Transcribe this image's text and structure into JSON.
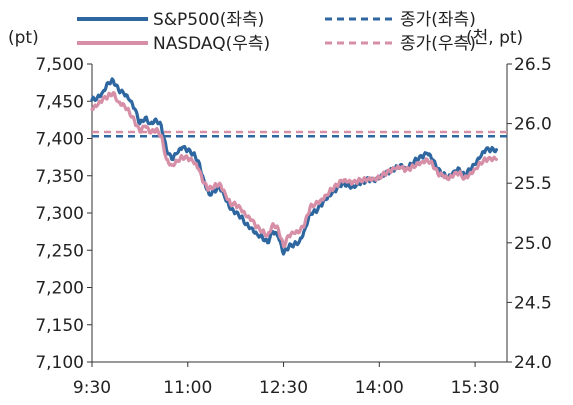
{
  "chart_data": {
    "type": "line",
    "units": {
      "left": "(pt)",
      "right": "(천, pt)"
    },
    "legend": [
      {
        "label": "S&P500(좌측)",
        "style": "solid",
        "color": "#2e66a0"
      },
      {
        "label": "NASDAQ(우측)",
        "style": "solid",
        "color": "#d68fa6"
      },
      {
        "label": "종가(좌측)",
        "style": "dashed",
        "color": "#2e66a0"
      },
      {
        "label": "종가(우측)",
        "style": "dashed",
        "color": "#d68fa6"
      }
    ],
    "x_ticks": [
      "9:30",
      "11:00",
      "12:30",
      "14:00",
      "15:30"
    ],
    "x_range_minutes": [
      570,
      960
    ],
    "y_left": {
      "min": 7100,
      "max": 7500,
      "ticks": [
        "7,500",
        "7,450",
        "7,400",
        "7,350",
        "7,300",
        "7,250",
        "7,200",
        "7,150",
        "7,100"
      ]
    },
    "y_right": {
      "min": 24.0,
      "max": 26.5,
      "ticks": [
        "26.5",
        "26.0",
        "25.5",
        "25.0",
        "24.5",
        "24.0"
      ]
    },
    "reference_lines": {
      "sp500_close_left": 7403,
      "nasdaq_close_right": 25.93
    },
    "series": [
      {
        "name": "S&P500(좌측)",
        "axis": "left",
        "color": "#2e66a0",
        "points": [
          [
            "9:30",
            7452
          ],
          [
            "9:35",
            7455
          ],
          [
            "9:40",
            7462
          ],
          [
            "9:45",
            7475
          ],
          [
            "9:50",
            7478
          ],
          [
            "9:55",
            7465
          ],
          [
            "10:00",
            7460
          ],
          [
            "10:05",
            7452
          ],
          [
            "10:10",
            7440
          ],
          [
            "10:15",
            7420
          ],
          [
            "10:20",
            7428
          ],
          [
            "10:25",
            7420
          ],
          [
            "10:30",
            7426
          ],
          [
            "10:35",
            7418
          ],
          [
            "10:40",
            7385
          ],
          [
            "10:45",
            7372
          ],
          [
            "10:50",
            7380
          ],
          [
            "10:55",
            7388
          ],
          [
            "11:00",
            7384
          ],
          [
            "11:05",
            7380
          ],
          [
            "11:10",
            7370
          ],
          [
            "11:15",
            7345
          ],
          [
            "11:20",
            7325
          ],
          [
            "11:25",
            7330
          ],
          [
            "11:30",
            7335
          ],
          [
            "11:35",
            7320
          ],
          [
            "11:40",
            7305
          ],
          [
            "11:45",
            7300
          ],
          [
            "11:50",
            7295
          ],
          [
            "11:55",
            7285
          ],
          [
            "12:00",
            7280
          ],
          [
            "12:05",
            7272
          ],
          [
            "12:10",
            7268
          ],
          [
            "12:15",
            7260
          ],
          [
            "12:20",
            7275
          ],
          [
            "12:25",
            7268
          ],
          [
            "12:30",
            7245
          ],
          [
            "12:35",
            7255
          ],
          [
            "12:40",
            7258
          ],
          [
            "12:45",
            7262
          ],
          [
            "12:50",
            7278
          ],
          [
            "12:55",
            7300
          ],
          [
            "13:00",
            7302
          ],
          [
            "13:05",
            7310
          ],
          [
            "13:10",
            7318
          ],
          [
            "13:15",
            7325
          ],
          [
            "13:20",
            7332
          ],
          [
            "13:25",
            7340
          ],
          [
            "13:30",
            7338
          ],
          [
            "13:35",
            7335
          ],
          [
            "13:40",
            7340
          ],
          [
            "13:45",
            7342
          ],
          [
            "13:50",
            7345
          ],
          [
            "13:55",
            7343
          ],
          [
            "14:00",
            7346
          ],
          [
            "14:05",
            7352
          ],
          [
            "14:10",
            7356
          ],
          [
            "14:15",
            7360
          ],
          [
            "14:20",
            7365
          ],
          [
            "14:25",
            7360
          ],
          [
            "14:30",
            7366
          ],
          [
            "14:35",
            7372
          ],
          [
            "14:40",
            7375
          ],
          [
            "14:45",
            7380
          ],
          [
            "14:50",
            7372
          ],
          [
            "14:55",
            7358
          ],
          [
            "15:00",
            7352
          ],
          [
            "15:05",
            7348
          ],
          [
            "15:10",
            7356
          ],
          [
            "15:15",
            7360
          ],
          [
            "15:20",
            7350
          ],
          [
            "15:25",
            7358
          ],
          [
            "15:30",
            7365
          ],
          [
            "15:35",
            7375
          ],
          [
            "15:40",
            7385
          ],
          [
            "15:45",
            7385
          ],
          [
            "15:50",
            7385
          ]
        ]
      },
      {
        "name": "NASDAQ(우측)",
        "axis": "right",
        "color": "#d68fa6",
        "points": [
          [
            "9:30",
            26.12
          ],
          [
            "9:35",
            26.15
          ],
          [
            "9:40",
            26.2
          ],
          [
            "9:45",
            26.23
          ],
          [
            "9:50",
            26.26
          ],
          [
            "9:55",
            26.18
          ],
          [
            "10:00",
            26.16
          ],
          [
            "10:05",
            26.1
          ],
          [
            "10:10",
            26.02
          ],
          [
            "10:15",
            25.93
          ],
          [
            "10:20",
            25.98
          ],
          [
            "10:25",
            25.92
          ],
          [
            "10:30",
            25.95
          ],
          [
            "10:35",
            25.9
          ],
          [
            "10:40",
            25.7
          ],
          [
            "10:45",
            25.65
          ],
          [
            "10:50",
            25.69
          ],
          [
            "10:55",
            25.72
          ],
          [
            "11:00",
            25.71
          ],
          [
            "11:05",
            25.68
          ],
          [
            "11:10",
            25.62
          ],
          [
            "11:15",
            25.5
          ],
          [
            "11:20",
            25.45
          ],
          [
            "11:25",
            25.48
          ],
          [
            "11:30",
            25.5
          ],
          [
            "11:35",
            25.42
          ],
          [
            "11:40",
            25.33
          ],
          [
            "11:45",
            25.32
          ],
          [
            "11:50",
            25.28
          ],
          [
            "11:55",
            25.22
          ],
          [
            "12:00",
            25.19
          ],
          [
            "12:05",
            25.13
          ],
          [
            "12:10",
            25.1
          ],
          [
            "12:15",
            25.06
          ],
          [
            "12:20",
            25.16
          ],
          [
            "12:25",
            25.12
          ],
          [
            "12:30",
            24.97
          ],
          [
            "12:35",
            25.06
          ],
          [
            "12:40",
            25.08
          ],
          [
            "12:45",
            25.09
          ],
          [
            "12:50",
            25.16
          ],
          [
            "12:55",
            25.3
          ],
          [
            "13:00",
            25.33
          ],
          [
            "13:05",
            25.36
          ],
          [
            "13:10",
            25.4
          ],
          [
            "13:15",
            25.45
          ],
          [
            "13:20",
            25.48
          ],
          [
            "13:25",
            25.52
          ],
          [
            "13:30",
            25.51
          ],
          [
            "13:35",
            25.5
          ],
          [
            "13:40",
            25.52
          ],
          [
            "13:45",
            25.53
          ],
          [
            "13:50",
            25.54
          ],
          [
            "13:55",
            25.54
          ],
          [
            "14:00",
            25.55
          ],
          [
            "14:05",
            25.58
          ],
          [
            "14:10",
            25.6
          ],
          [
            "14:15",
            25.62
          ],
          [
            "14:20",
            25.63
          ],
          [
            "14:25",
            25.61
          ],
          [
            "14:30",
            25.63
          ],
          [
            "14:35",
            25.66
          ],
          [
            "14:40",
            25.68
          ],
          [
            "14:45",
            25.7
          ],
          [
            "14:50",
            25.66
          ],
          [
            "14:55",
            25.58
          ],
          [
            "15:00",
            25.56
          ],
          [
            "15:05",
            25.53
          ],
          [
            "15:10",
            25.57
          ],
          [
            "15:15",
            25.59
          ],
          [
            "15:20",
            25.54
          ],
          [
            "15:25",
            25.58
          ],
          [
            "15:30",
            25.62
          ],
          [
            "15:35",
            25.67
          ],
          [
            "15:40",
            25.7
          ],
          [
            "15:45",
            25.7
          ],
          [
            "15:50",
            25.7
          ]
        ]
      }
    ]
  }
}
